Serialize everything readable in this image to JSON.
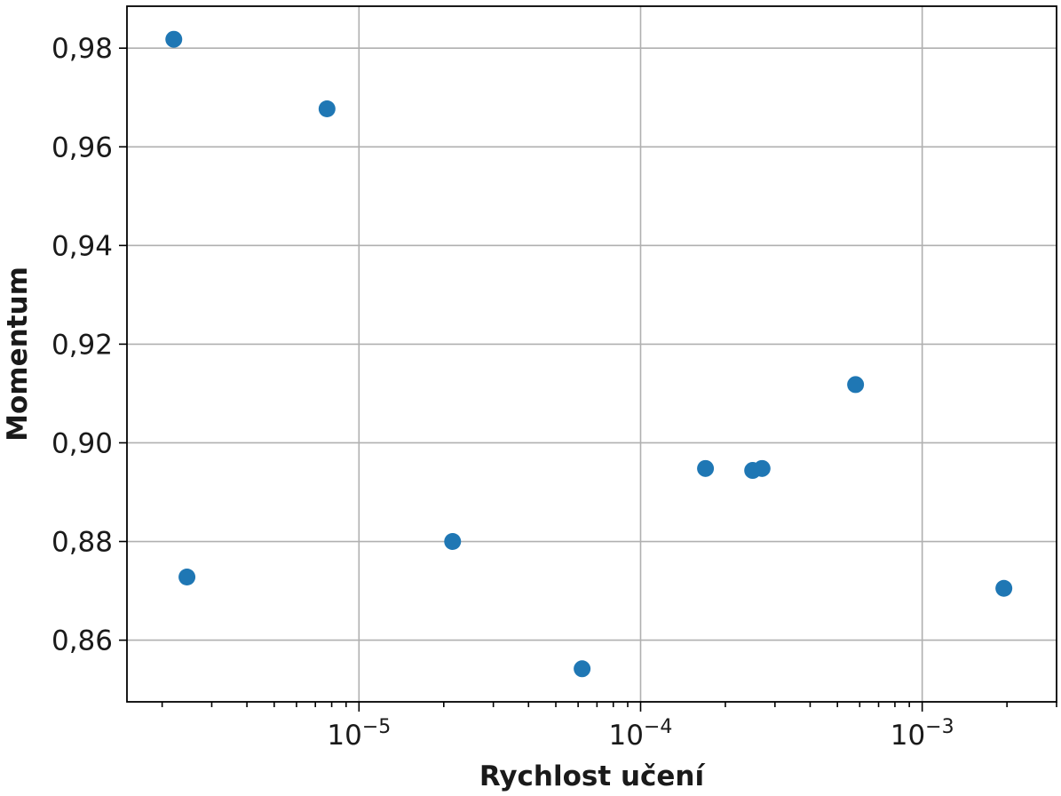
{
  "chart_data": {
    "type": "scatter",
    "title": "",
    "xlabel": "Rychlost učení",
    "ylabel": "Momentum",
    "x_scale": "log",
    "xlim": [
      1.5e-06,
      0.003
    ],
    "ylim": [
      0.8475,
      0.9885
    ],
    "grid": true,
    "marker_color": "#1f77b4",
    "x_ticks": [
      {
        "value": 1e-05,
        "base": "10",
        "exp": "−5"
      },
      {
        "value": 0.0001,
        "base": "10",
        "exp": "−4"
      },
      {
        "value": 0.001,
        "base": "10",
        "exp": "−3"
      }
    ],
    "y_ticks": [
      {
        "value": 0.86,
        "label": "0,86"
      },
      {
        "value": 0.88,
        "label": "0,88"
      },
      {
        "value": 0.9,
        "label": "0,90"
      },
      {
        "value": 0.92,
        "label": "0,92"
      },
      {
        "value": 0.94,
        "label": "0,94"
      },
      {
        "value": 0.96,
        "label": "0,96"
      },
      {
        "value": 0.98,
        "label": "0,98"
      }
    ],
    "points": [
      {
        "x": 2.2e-06,
        "y": 0.9818
      },
      {
        "x": 2.45e-06,
        "y": 0.8728
      },
      {
        "x": 7.7e-06,
        "y": 0.9677
      },
      {
        "x": 2.15e-05,
        "y": 0.88
      },
      {
        "x": 6.2e-05,
        "y": 0.8542
      },
      {
        "x": 0.00017,
        "y": 0.8948
      },
      {
        "x": 0.00025,
        "y": 0.8944
      },
      {
        "x": 0.00027,
        "y": 0.8948
      },
      {
        "x": 0.00058,
        "y": 0.9118
      },
      {
        "x": 0.00195,
        "y": 0.8705
      }
    ]
  }
}
